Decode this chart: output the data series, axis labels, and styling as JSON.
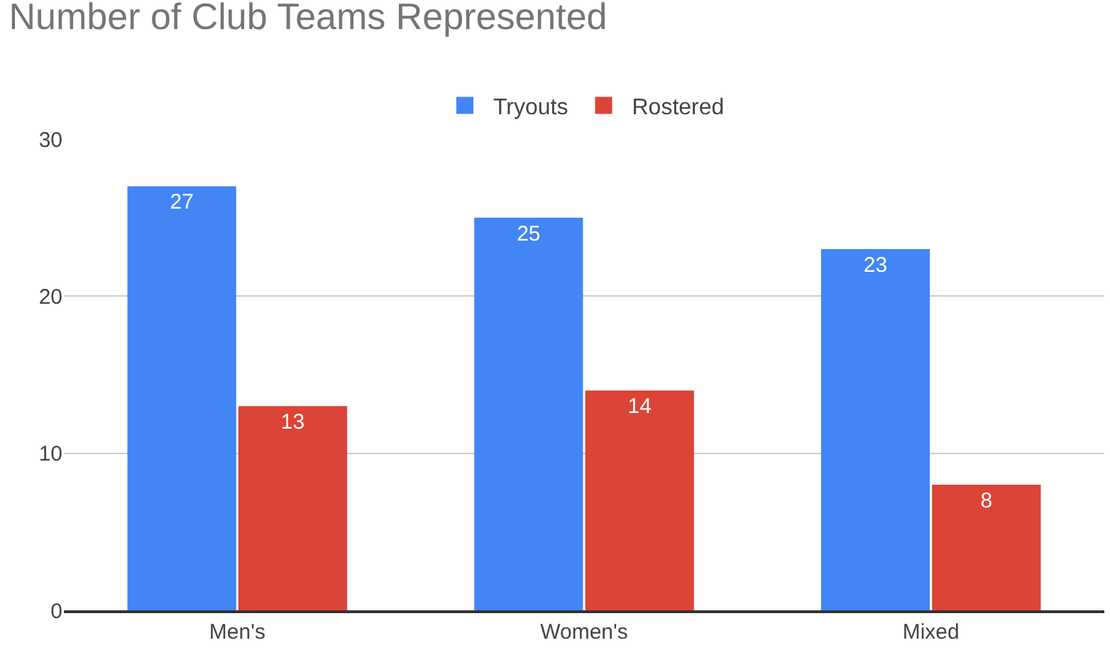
{
  "chart_data": {
    "type": "bar",
    "title": "Number of Club Teams Represented",
    "categories": [
      "Men's",
      "Women's",
      "Mixed"
    ],
    "series": [
      {
        "name": "Tryouts",
        "color": "#4285f4",
        "values": [
          27,
          25,
          23
        ]
      },
      {
        "name": "Rostered",
        "color": "#db4437",
        "values": [
          13,
          14,
          8
        ]
      }
    ],
    "ylim": [
      0,
      30
    ],
    "yticks": [
      0,
      10,
      20,
      30
    ],
    "grid": "y",
    "legend": "top",
    "data_labels": true
  }
}
